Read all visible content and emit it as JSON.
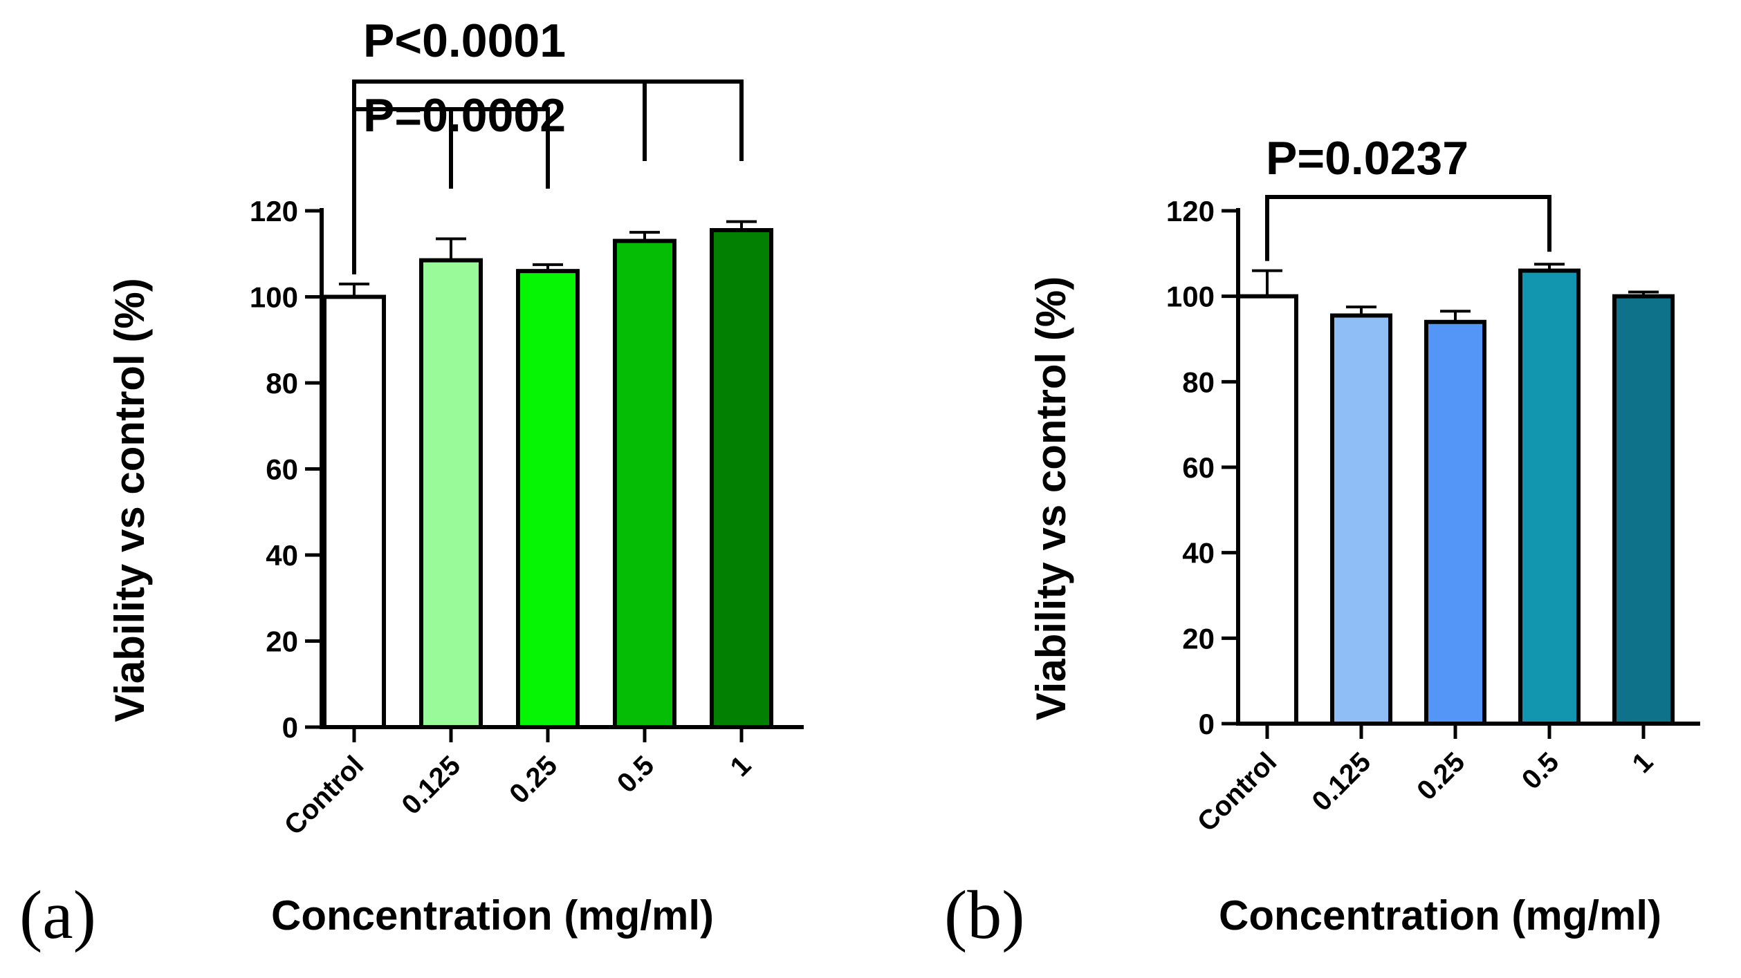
{
  "chart_data": [
    {
      "type": "bar",
      "panel_label": "(a)",
      "categories": [
        "Control",
        "0.125",
        "0.25",
        "0.5",
        "1"
      ],
      "values": [
        100,
        108.5,
        106,
        113,
        115.5
      ],
      "errors": [
        3,
        5,
        1.5,
        2,
        2
      ],
      "colors": [
        "#ffffff",
        "#99fa99",
        "#05f505",
        "#05bd05",
        "#028002"
      ],
      "xlabel": "Concentration (mg/ml)",
      "ylabel": "Viability vs control (%)",
      "ylim": [
        0,
        120
      ],
      "yticks": [
        0,
        20,
        40,
        60,
        80,
        100,
        120
      ],
      "annotations": [
        {
          "label": "P<0.0001",
          "from": "Control",
          "to": [
            "0.5",
            "1"
          ]
        },
        {
          "label": "P=0.0002",
          "from": "Control",
          "to": [
            "0.125",
            "0.25"
          ]
        }
      ]
    },
    {
      "type": "bar",
      "panel_label": "(b)",
      "categories": [
        "Control",
        "0.125",
        "0.25",
        "0.5",
        "1"
      ],
      "values": [
        100,
        95.5,
        94,
        106,
        100
      ],
      "errors": [
        6,
        2,
        2.5,
        1.5,
        1
      ],
      "colors": [
        "#ffffff",
        "#8fbdf5",
        "#5496f7",
        "#1296b0",
        "#0e728a"
      ],
      "xlabel": "Concentration (mg/ml)",
      "ylabel": "Viability vs control (%)",
      "ylim": [
        0,
        120
      ],
      "yticks": [
        0,
        20,
        40,
        60,
        80,
        100,
        120
      ],
      "annotations": [
        {
          "label": "P=0.0237",
          "from": "Control",
          "to": [
            "0.5"
          ]
        }
      ]
    }
  ]
}
